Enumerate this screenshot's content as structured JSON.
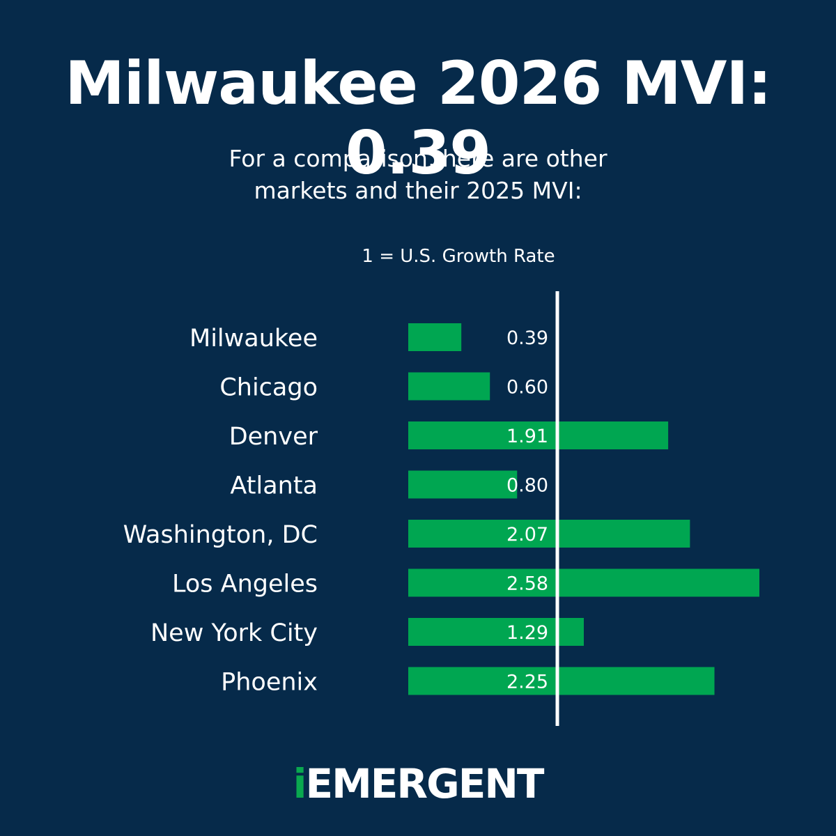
{
  "title": "Milwaukee 2026 MVI: 0.39",
  "subtitle_line1": "For a comparison, here are other",
  "subtitle_line2": "markets and their 2025 MVI:",
  "reference_label": "1 = U.S. Growth Rate",
  "logo": {
    "mark": "i",
    "text": "EMERGENT"
  },
  "colors": {
    "background": "#062a4a",
    "bar": "#00a651",
    "reference_line": "#ffffff",
    "text": "#ffffff"
  },
  "chart_data": {
    "type": "bar",
    "orientation": "horizontal",
    "categories": [
      "Milwaukee",
      "Chicago",
      "Denver",
      "Atlanta",
      "Washington, DC",
      "Los Angeles",
      "New York City",
      "Phoenix"
    ],
    "values": [
      0.39,
      0.6,
      1.91,
      0.8,
      2.07,
      2.58,
      1.29,
      2.25
    ],
    "value_labels": [
      "0.39",
      "0.60",
      "1.91",
      "0.80",
      "2.07",
      "2.58",
      "1.29",
      "2.25"
    ],
    "reference_value": 1,
    "xlim": [
      0,
      2.58
    ],
    "grid": false
  }
}
